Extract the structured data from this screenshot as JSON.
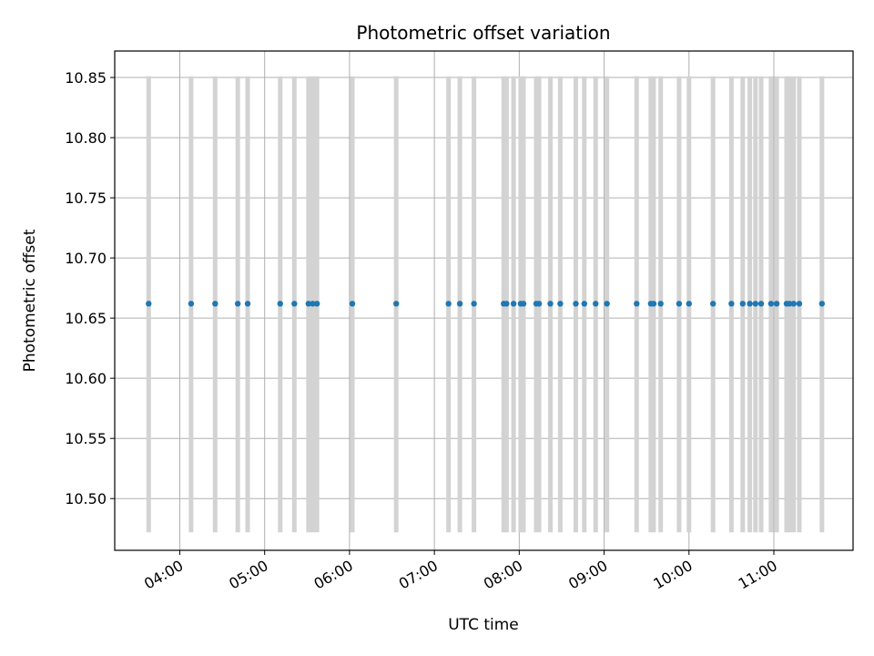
{
  "chart_data": {
    "type": "scatter",
    "title": "Photometric offset variation",
    "xlabel": "UTC time",
    "ylabel": "Photometric offset",
    "grid": true,
    "xlim": [
      "03:14",
      "11:56"
    ],
    "ylim": [
      10.457,
      10.872
    ],
    "x_ticks": [
      "04:00",
      "05:00",
      "06:00",
      "07:00",
      "08:00",
      "09:00",
      "10:00",
      "11:00"
    ],
    "y_ticks": [
      "10.50",
      "10.55",
      "10.60",
      "10.65",
      "10.70",
      "10.75",
      "10.80",
      "10.85"
    ],
    "error_bar": {
      "low": 10.472,
      "high": 10.851
    },
    "x": [
      "03:38",
      "04:08",
      "04:25",
      "04:41",
      "04:48",
      "05:11",
      "05:21",
      "05:31",
      "05:34",
      "05:37",
      "06:02",
      "06:33",
      "07:10",
      "07:18",
      "07:28",
      "07:49",
      "07:51",
      "07:56",
      "08:01",
      "08:03",
      "08:12",
      "08:14",
      "08:22",
      "08:29",
      "08:40",
      "08:46",
      "08:54",
      "09:02",
      "09:23",
      "09:33",
      "09:35",
      "09:40",
      "09:53",
      "10:00",
      "10:17",
      "10:30",
      "10:38",
      "10:43",
      "10:47",
      "10:51",
      "10:58",
      "11:02",
      "11:09",
      "11:11",
      "11:14",
      "11:18",
      "11:34"
    ],
    "y": [
      10.662,
      10.662,
      10.662,
      10.662,
      10.662,
      10.662,
      10.662,
      10.662,
      10.662,
      10.662,
      10.662,
      10.662,
      10.662,
      10.662,
      10.662,
      10.662,
      10.662,
      10.662,
      10.662,
      10.662,
      10.662,
      10.662,
      10.662,
      10.662,
      10.662,
      10.662,
      10.662,
      10.662,
      10.662,
      10.662,
      10.662,
      10.662,
      10.662,
      10.662,
      10.662,
      10.662,
      10.662,
      10.662,
      10.662,
      10.662,
      10.662,
      10.662,
      10.662,
      10.662,
      10.662,
      10.662,
      10.662
    ],
    "colors": {
      "marker": "#1f77b4",
      "error_bar": "#d3d3d3",
      "grid": "#b0b0b0",
      "axes": "#000000"
    }
  }
}
